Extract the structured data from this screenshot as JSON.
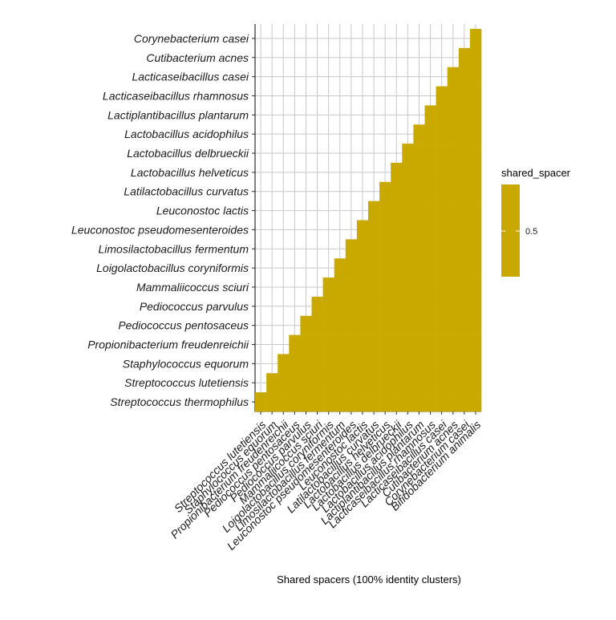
{
  "chart_data": {
    "type": "heatmap",
    "title": "",
    "xlabel": "Shared spacers (100% identity clusters)",
    "ylabel": "",
    "fill_color": "#c9a800",
    "grid": true,
    "legend": {
      "title": "shared_spacer",
      "placement": "right",
      "labels": [
        "0.5"
      ]
    },
    "y_categories": [
      "Corynebacterium casei",
      "Cutibacterium acnes",
      "Lacticaseibacillus casei",
      "Lacticaseibacillus rhamnosus",
      "Lactiplantibacillus plantarum",
      "Lactobacillus acidophilus",
      "Lactobacillus delbrueckii",
      "Lactobacillus helveticus",
      "Latilactobacillus curvatus",
      "Leuconostoc lactis",
      "Leuconostoc pseudomesenteroides",
      "Limosilactobacillus fermentum",
      "Loigolactobacillus coryniformis",
      "Mammaliicoccus sciuri",
      "Pediococcus parvulus",
      "Pediococcus pentosaceus",
      "Propionibacterium freudenreichii",
      "Staphylococcus equorum",
      "Streptococcus lutetiensis",
      "Streptococcus thermophilus"
    ],
    "x_categories": [
      "Streptococcus lutetiensis",
      "Staphylococcus equorum",
      "Propionibacterium freudenreichii",
      "Pediococcus pentosaceus",
      "Pediococcus parvulus",
      "Mammaliicoccus sciuri",
      "Loigolactobacillus coryniformis",
      "Limosilactobacillus fermentum",
      "Leuconostoc pseudomesenteroides",
      "Leuconostoc lactis",
      "Latilactobacillus curvatus",
      "Lactobacillus helveticus",
      "Lactobacillus delbrueckii",
      "Lactobacillus acidophilus",
      "Lactiplantibacillus plantarum",
      "Lacticaseibacillus rhamnosus",
      "Lacticaseibacillus casei",
      "Cutibacterium acnes",
      "Corynebacterium casei",
      "Bifidobacterium animalis"
    ],
    "cells_description_rule": "lower-triangle: cell(x index j, y index i from top) filled when j >= 19 - i",
    "values": 0.5
  }
}
